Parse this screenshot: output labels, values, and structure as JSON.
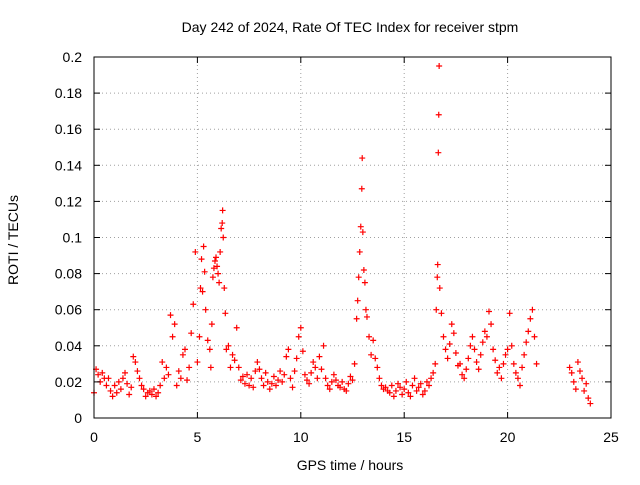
{
  "chart_data": {
    "type": "scatter",
    "title": "Day 242 of 2024, Rate Of TEC Index for receiver stpm",
    "xlabel": "GPS time / hours",
    "ylabel": "ROTI / TECUs",
    "xlim": [
      0,
      25
    ],
    "ylim": [
      0,
      0.2
    ],
    "xticks": [
      0,
      5,
      10,
      15,
      20,
      25
    ],
    "yticks": [
      0,
      0.02,
      0.04,
      0.06,
      0.08,
      0.1,
      0.12,
      0.14,
      0.16,
      0.18,
      0.2
    ],
    "xtick_labels": [
      "0",
      "5",
      "10",
      "15",
      "20",
      "25"
    ],
    "ytick_labels": [
      "0",
      "0.02",
      "0.04",
      "0.06",
      "0.08",
      "0.1",
      "0.12",
      "0.14",
      "0.16",
      "0.18",
      "0.2"
    ],
    "grid": true,
    "marker": "+",
    "color": "#ff0000",
    "series": [
      {
        "name": "ROTI",
        "points": [
          [
            0.0,
            0.014
          ],
          [
            0.1,
            0.027
          ],
          [
            0.2,
            0.024
          ],
          [
            0.3,
            0.02
          ],
          [
            0.4,
            0.025
          ],
          [
            0.5,
            0.022
          ],
          [
            0.6,
            0.018
          ],
          [
            0.7,
            0.022
          ],
          [
            0.8,
            0.015
          ],
          [
            0.9,
            0.012
          ],
          [
            1.0,
            0.018
          ],
          [
            1.1,
            0.014
          ],
          [
            1.2,
            0.02
          ],
          [
            1.3,
            0.016
          ],
          [
            1.4,
            0.022
          ],
          [
            1.5,
            0.025
          ],
          [
            1.6,
            0.019
          ],
          [
            1.7,
            0.013
          ],
          [
            1.8,
            0.017
          ],
          [
            1.9,
            0.034
          ],
          [
            2.0,
            0.031
          ],
          [
            2.1,
            0.026
          ],
          [
            2.2,
            0.022
          ],
          [
            2.3,
            0.018
          ],
          [
            2.4,
            0.016
          ],
          [
            2.5,
            0.012
          ],
          [
            2.6,
            0.014
          ],
          [
            2.7,
            0.015
          ],
          [
            2.8,
            0.013
          ],
          [
            2.9,
            0.016
          ],
          [
            3.0,
            0.012
          ],
          [
            3.1,
            0.014
          ],
          [
            3.2,
            0.018
          ],
          [
            3.3,
            0.031
          ],
          [
            3.4,
            0.022
          ],
          [
            3.5,
            0.028
          ],
          [
            3.6,
            0.024
          ],
          [
            3.7,
            0.057
          ],
          [
            3.8,
            0.045
          ],
          [
            3.9,
            0.052
          ],
          [
            4.0,
            0.018
          ],
          [
            4.1,
            0.026
          ],
          [
            4.2,
            0.022
          ],
          [
            4.3,
            0.035
          ],
          [
            4.4,
            0.038
          ],
          [
            4.5,
            0.021
          ],
          [
            4.6,
            0.028
          ],
          [
            4.7,
            0.047
          ],
          [
            4.8,
            0.063
          ],
          [
            4.9,
            0.092
          ],
          [
            5.0,
            0.031
          ],
          [
            5.1,
            0.045
          ],
          [
            5.15,
            0.072
          ],
          [
            5.2,
            0.088
          ],
          [
            5.25,
            0.07
          ],
          [
            5.3,
            0.095
          ],
          [
            5.35,
            0.081
          ],
          [
            5.4,
            0.06
          ],
          [
            5.5,
            0.043
          ],
          [
            5.6,
            0.038
          ],
          [
            5.65,
            0.028
          ],
          [
            5.7,
            0.052
          ],
          [
            5.75,
            0.078
          ],
          [
            5.8,
            0.083
          ],
          [
            5.85,
            0.087
          ],
          [
            5.9,
            0.089
          ],
          [
            5.95,
            0.084
          ],
          [
            6.0,
            0.08
          ],
          [
            6.05,
            0.075
          ],
          [
            6.1,
            0.092
          ],
          [
            6.15,
            0.105
          ],
          [
            6.2,
            0.108
          ],
          [
            6.22,
            0.115
          ],
          [
            6.25,
            0.1
          ],
          [
            6.3,
            0.072
          ],
          [
            6.35,
            0.058
          ],
          [
            6.4,
            0.038
          ],
          [
            6.5,
            0.04
          ],
          [
            6.6,
            0.028
          ],
          [
            6.7,
            0.035
          ],
          [
            6.8,
            0.032
          ],
          [
            6.9,
            0.05
          ],
          [
            7.0,
            0.028
          ],
          [
            7.1,
            0.021
          ],
          [
            7.2,
            0.023
          ],
          [
            7.3,
            0.019
          ],
          [
            7.4,
            0.024
          ],
          [
            7.5,
            0.018
          ],
          [
            7.6,
            0.022
          ],
          [
            7.7,
            0.017
          ],
          [
            7.8,
            0.026
          ],
          [
            7.9,
            0.031
          ],
          [
            8.0,
            0.027
          ],
          [
            8.1,
            0.022
          ],
          [
            8.2,
            0.018
          ],
          [
            8.3,
            0.025
          ],
          [
            8.4,
            0.02
          ],
          [
            8.5,
            0.016
          ],
          [
            8.6,
            0.019
          ],
          [
            8.7,
            0.023
          ],
          [
            8.8,
            0.018
          ],
          [
            8.9,
            0.021
          ],
          [
            9.0,
            0.026
          ],
          [
            9.1,
            0.02
          ],
          [
            9.2,
            0.024
          ],
          [
            9.3,
            0.034
          ],
          [
            9.4,
            0.038
          ],
          [
            9.5,
            0.022
          ],
          [
            9.6,
            0.017
          ],
          [
            9.7,
            0.026
          ],
          [
            9.8,
            0.033
          ],
          [
            9.9,
            0.045
          ],
          [
            10.0,
            0.05
          ],
          [
            10.1,
            0.037
          ],
          [
            10.2,
            0.024
          ],
          [
            10.3,
            0.021
          ],
          [
            10.4,
            0.019
          ],
          [
            10.5,
            0.025
          ],
          [
            10.6,
            0.031
          ],
          [
            10.7,
            0.028
          ],
          [
            10.8,
            0.022
          ],
          [
            10.9,
            0.034
          ],
          [
            11.0,
            0.027
          ],
          [
            11.1,
            0.04
          ],
          [
            11.2,
            0.022
          ],
          [
            11.3,
            0.018
          ],
          [
            11.4,
            0.016
          ],
          [
            11.5,
            0.02
          ],
          [
            11.6,
            0.024
          ],
          [
            11.7,
            0.021
          ],
          [
            11.8,
            0.018
          ],
          [
            11.9,
            0.017
          ],
          [
            12.0,
            0.02
          ],
          [
            12.1,
            0.016
          ],
          [
            12.2,
            0.015
          ],
          [
            12.3,
            0.019
          ],
          [
            12.4,
            0.023
          ],
          [
            12.5,
            0.021
          ],
          [
            12.6,
            0.03
          ],
          [
            12.7,
            0.055
          ],
          [
            12.75,
            0.065
          ],
          [
            12.8,
            0.078
          ],
          [
            12.85,
            0.092
          ],
          [
            12.9,
            0.106
          ],
          [
            12.95,
            0.127
          ],
          [
            12.97,
            0.144
          ],
          [
            13.0,
            0.103
          ],
          [
            13.05,
            0.082
          ],
          [
            13.1,
            0.075
          ],
          [
            13.15,
            0.06
          ],
          [
            13.2,
            0.056
          ],
          [
            13.3,
            0.045
          ],
          [
            13.4,
            0.035
          ],
          [
            13.5,
            0.043
          ],
          [
            13.6,
            0.033
          ],
          [
            13.7,
            0.028
          ],
          [
            13.8,
            0.022
          ],
          [
            13.9,
            0.018
          ],
          [
            14.0,
            0.016
          ],
          [
            14.1,
            0.017
          ],
          [
            14.2,
            0.015
          ],
          [
            14.3,
            0.014
          ],
          [
            14.4,
            0.018
          ],
          [
            14.5,
            0.012
          ],
          [
            14.6,
            0.015
          ],
          [
            14.7,
            0.019
          ],
          [
            14.8,
            0.017
          ],
          [
            14.9,
            0.013
          ],
          [
            15.0,
            0.016
          ],
          [
            15.1,
            0.02
          ],
          [
            15.2,
            0.014
          ],
          [
            15.3,
            0.012
          ],
          [
            15.4,
            0.018
          ],
          [
            15.5,
            0.022
          ],
          [
            15.6,
            0.015
          ],
          [
            15.7,
            0.017
          ],
          [
            15.8,
            0.019
          ],
          [
            15.9,
            0.013
          ],
          [
            16.0,
            0.015
          ],
          [
            16.1,
            0.02
          ],
          [
            16.2,
            0.018
          ],
          [
            16.3,
            0.022
          ],
          [
            16.4,
            0.025
          ],
          [
            16.5,
            0.03
          ],
          [
            16.55,
            0.06
          ],
          [
            16.6,
            0.078
          ],
          [
            16.62,
            0.085
          ],
          [
            16.65,
            0.147
          ],
          [
            16.67,
            0.168
          ],
          [
            16.69,
            0.195
          ],
          [
            16.72,
            0.072
          ],
          [
            16.8,
            0.058
          ],
          [
            16.9,
            0.045
          ],
          [
            17.0,
            0.038
          ],
          [
            17.1,
            0.033
          ],
          [
            17.2,
            0.041
          ],
          [
            17.3,
            0.052
          ],
          [
            17.4,
            0.047
          ],
          [
            17.5,
            0.036
          ],
          [
            17.6,
            0.029
          ],
          [
            17.7,
            0.03
          ],
          [
            17.8,
            0.024
          ],
          [
            17.9,
            0.022
          ],
          [
            18.0,
            0.027
          ],
          [
            18.1,
            0.033
          ],
          [
            18.2,
            0.04
          ],
          [
            18.3,
            0.045
          ],
          [
            18.4,
            0.038
          ],
          [
            18.5,
            0.031
          ],
          [
            18.6,
            0.027
          ],
          [
            18.7,
            0.035
          ],
          [
            18.8,
            0.042
          ],
          [
            18.9,
            0.048
          ],
          [
            19.0,
            0.045
          ],
          [
            19.1,
            0.059
          ],
          [
            19.2,
            0.052
          ],
          [
            19.3,
            0.038
          ],
          [
            19.4,
            0.032
          ],
          [
            19.5,
            0.025
          ],
          [
            19.6,
            0.028
          ],
          [
            19.7,
            0.022
          ],
          [
            19.8,
            0.03
          ],
          [
            19.9,
            0.035
          ],
          [
            20.0,
            0.038
          ],
          [
            20.1,
            0.058
          ],
          [
            20.2,
            0.04
          ],
          [
            20.3,
            0.03
          ],
          [
            20.4,
            0.025
          ],
          [
            20.5,
            0.022
          ],
          [
            20.6,
            0.018
          ],
          [
            20.7,
            0.028
          ],
          [
            20.8,
            0.035
          ],
          [
            20.9,
            0.042
          ],
          [
            21.0,
            0.048
          ],
          [
            21.1,
            0.055
          ],
          [
            21.2,
            0.06
          ],
          [
            21.3,
            0.045
          ],
          [
            21.4,
            0.03
          ],
          [
            23.0,
            0.028
          ],
          [
            23.1,
            0.025
          ],
          [
            23.2,
            0.02
          ],
          [
            23.3,
            0.016
          ],
          [
            23.4,
            0.031
          ],
          [
            23.5,
            0.026
          ],
          [
            23.6,
            0.022
          ],
          [
            23.7,
            0.015
          ],
          [
            23.8,
            0.019
          ],
          [
            23.9,
            0.011
          ],
          [
            24.0,
            0.008
          ]
        ]
      }
    ]
  }
}
